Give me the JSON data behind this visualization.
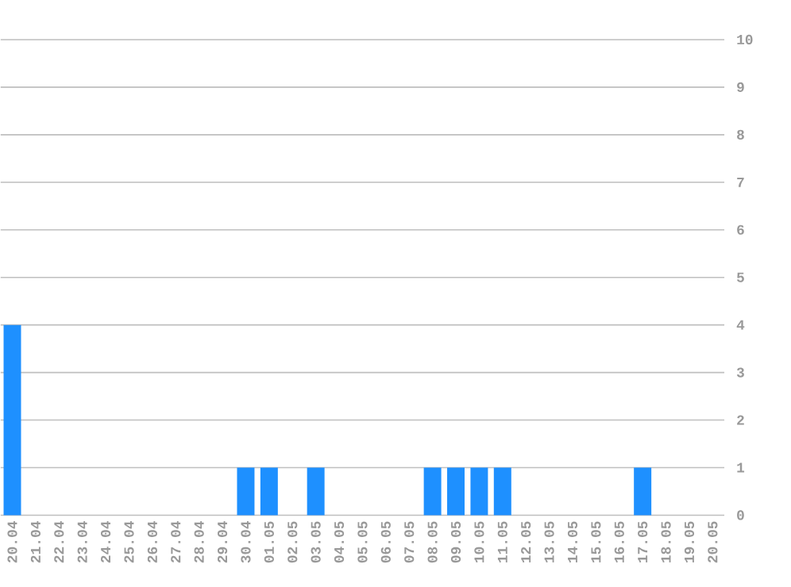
{
  "chart_data": {
    "type": "bar",
    "categories": [
      "20.04",
      "21.04",
      "22.04",
      "23.04",
      "24.04",
      "25.04",
      "26.04",
      "27.04",
      "28.04",
      "29.04",
      "30.04",
      "01.05",
      "02.05",
      "03.05",
      "04.05",
      "05.05",
      "06.05",
      "07.05",
      "08.05",
      "09.05",
      "10.05",
      "11.05",
      "12.05",
      "13.05",
      "14.05",
      "15.05",
      "16.05",
      "17.05",
      "18.05",
      "19.05",
      "20.05"
    ],
    "values": [
      4,
      0,
      0,
      0,
      0,
      0,
      0,
      0,
      0,
      0,
      1,
      1,
      0,
      1,
      0,
      0,
      0,
      0,
      1,
      1,
      1,
      1,
      0,
      0,
      0,
      0,
      0,
      1,
      0,
      0,
      0
    ],
    "color": "#1e90ff",
    "ylim": [
      0,
      10
    ],
    "yticks": [
      0,
      1,
      2,
      3,
      4,
      5,
      6,
      7,
      8,
      9,
      10
    ],
    "grid": "y"
  }
}
